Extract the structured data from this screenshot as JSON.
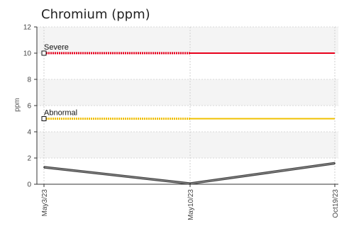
{
  "chart_data": {
    "type": "line",
    "title": "Chromium (ppm)",
    "xlabel": "",
    "ylabel": "ppm",
    "ylim": [
      0,
      12
    ],
    "yticks": [
      0,
      2,
      4,
      6,
      8,
      10,
      12
    ],
    "categories": [
      "May3/23",
      "May10/23",
      "Oct19/23"
    ],
    "grid": true,
    "series": [
      {
        "values": [
          1.3,
          0.05,
          1.6
        ],
        "color": "#555555"
      }
    ],
    "reference_lines": [
      {
        "label": "Severe",
        "value": 10,
        "color": "#e8001c"
      },
      {
        "label": "Abnormal",
        "value": 5,
        "color": "#f0c000"
      }
    ]
  }
}
